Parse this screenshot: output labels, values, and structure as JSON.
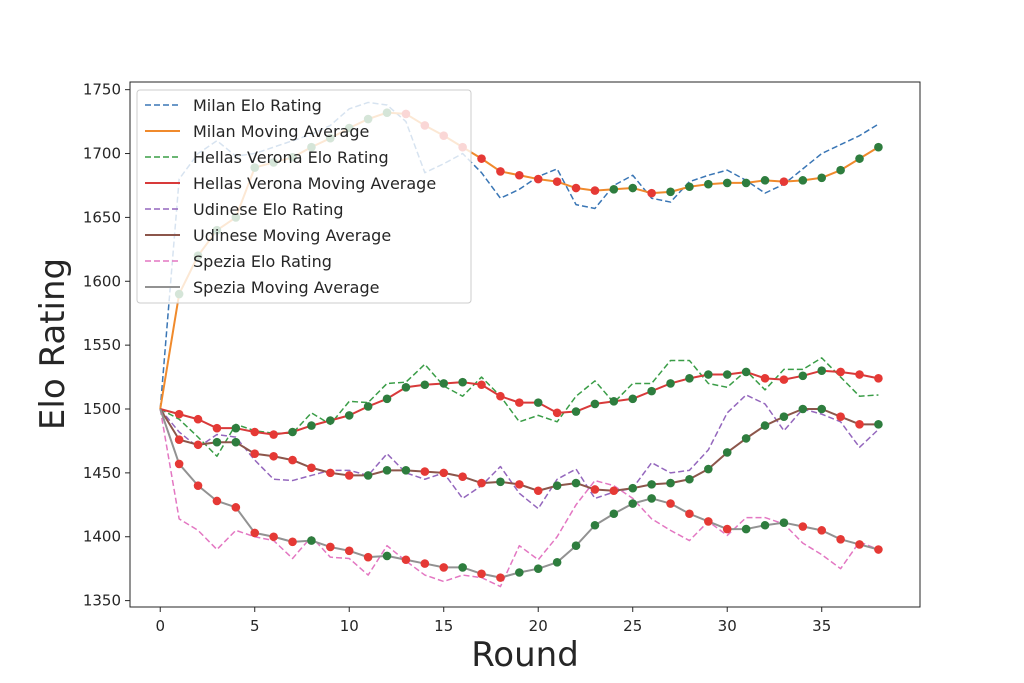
{
  "chart_data": {
    "type": "line",
    "title": "",
    "xlabel": "Round",
    "ylabel": "Elo Rating",
    "xlim": [
      -1.6,
      40.2
    ],
    "ylim": [
      1345,
      1756
    ],
    "xticks": [
      0,
      5,
      10,
      15,
      20,
      25,
      30,
      35
    ],
    "yticks": [
      1350,
      1400,
      1450,
      1500,
      1550,
      1600,
      1650,
      1700,
      1750
    ],
    "grid": false,
    "legend_position": "top-left",
    "legend_order": [
      "Milan Elo Rating",
      "Milan Moving Average",
      "Hellas Verona Elo Rating",
      "Hellas Verona Moving Average",
      "Udinese Elo Rating",
      "Udinese Moving Average",
      "Spezia Elo Rating",
      "Spezia Moving Average"
    ],
    "marker_colors": {
      "up": "#2e7d3e",
      "down": "#e53935"
    },
    "x": [
      0,
      1,
      2,
      3,
      4,
      5,
      6,
      7,
      8,
      9,
      10,
      11,
      12,
      13,
      14,
      15,
      16,
      17,
      18,
      19,
      20,
      21,
      22,
      23,
      24,
      25,
      26,
      27,
      28,
      29,
      30,
      31,
      32,
      33,
      34,
      35,
      36,
      37,
      38
    ],
    "series": [
      {
        "name": "Milan Elo Rating",
        "style": "dashed",
        "color": "#3a76b5",
        "values": [
          1500,
          1680,
          1700,
          1710,
          1698,
          1700,
          1705,
          1710,
          1715,
          1722,
          1735,
          1740,
          1738,
          1725,
          1685,
          1692,
          1700,
          1685,
          1665,
          1672,
          1682,
          1688,
          1660,
          1657,
          1675,
          1683,
          1665,
          1662,
          1678,
          1683,
          1687,
          1679,
          1669,
          1676,
          1688,
          1700,
          1707,
          1714,
          1723
        ]
      },
      {
        "name": "Milan Moving Average",
        "style": "solid",
        "color": "#f08a2c",
        "markers": true,
        "values": [
          1500,
          1590,
          1620,
          1640,
          1650,
          1689,
          1693,
          1697,
          1705,
          1712,
          1720,
          1727,
          1732,
          1731,
          1722,
          1714,
          1705,
          1696,
          1686,
          1683,
          1680,
          1678,
          1673,
          1671,
          1672,
          1673,
          1669,
          1670,
          1674,
          1676,
          1677,
          1677,
          1679,
          1678,
          1679,
          1681,
          1687,
          1696,
          1705
        ]
      },
      {
        "name": "Hellas Verona Elo Rating",
        "style": "dashed",
        "color": "#3a9d47",
        "values": [
          1500,
          1492,
          1478,
          1463,
          1488,
          1483,
          1481,
          1481,
          1497,
          1488,
          1506,
          1505,
          1520,
          1521,
          1535,
          1518,
          1510,
          1525,
          1510,
          1490,
          1495,
          1490,
          1510,
          1522,
          1505,
          1520,
          1520,
          1538,
          1538,
          1520,
          1517,
          1530,
          1515,
          1531,
          1531,
          1540,
          1525,
          1510,
          1511
        ]
      },
      {
        "name": "Hellas Verona Moving Average",
        "style": "solid",
        "color": "#d83a3a",
        "markers": true,
        "values": [
          1500,
          1496,
          1492,
          1485,
          1485,
          1482,
          1480,
          1482,
          1487,
          1491,
          1495,
          1502,
          1508,
          1517,
          1519,
          1520,
          1521,
          1519,
          1510,
          1505,
          1505,
          1497,
          1498,
          1504,
          1506,
          1508,
          1514,
          1520,
          1524,
          1527,
          1527,
          1529,
          1524,
          1523,
          1526,
          1530,
          1529,
          1527,
          1524
        ]
      },
      {
        "name": "Udinese Elo Rating",
        "style": "dashed",
        "color": "#9467bd",
        "values": [
          1500,
          1482,
          1470,
          1480,
          1478,
          1460,
          1445,
          1444,
          1448,
          1452,
          1452,
          1448,
          1465,
          1450,
          1445,
          1450,
          1430,
          1440,
          1455,
          1434,
          1422,
          1445,
          1453,
          1430,
          1435,
          1438,
          1458,
          1450,
          1452,
          1468,
          1497,
          1511,
          1504,
          1483,
          1500,
          1496,
          1490,
          1470,
          1484
        ]
      },
      {
        "name": "Udinese Moving Average",
        "style": "solid",
        "color": "#8c564b",
        "markers": true,
        "values": [
          1500,
          1476,
          1472,
          1474,
          1474,
          1465,
          1463,
          1460,
          1454,
          1450,
          1448,
          1448,
          1452,
          1452,
          1451,
          1450,
          1447,
          1442,
          1443,
          1441,
          1436,
          1440,
          1442,
          1437,
          1436,
          1438,
          1441,
          1442,
          1445,
          1453,
          1466,
          1477,
          1487,
          1494,
          1500,
          1500,
          1494,
          1488,
          1488
        ]
      },
      {
        "name": "Spezia Elo Rating",
        "style": "dashed",
        "color": "#e377c2",
        "values": [
          1500,
          1414,
          1405,
          1390,
          1405,
          1400,
          1397,
          1383,
          1400,
          1384,
          1383,
          1370,
          1393,
          1381,
          1370,
          1365,
          1370,
          1368,
          1361,
          1393,
          1382,
          1400,
          1425,
          1444,
          1440,
          1430,
          1414,
          1405,
          1397,
          1412,
          1401,
          1415,
          1415,
          1410,
          1395,
          1386,
          1375,
          1396,
          1390
        ]
      },
      {
        "name": "Spezia Moving Average",
        "style": "solid",
        "color": "#929292",
        "markers": true,
        "values": [
          1500,
          1457,
          1440,
          1428,
          1423,
          1403,
          1400,
          1396,
          1397,
          1392,
          1389,
          1384,
          1385,
          1382,
          1379,
          1376,
          1376,
          1371,
          1368,
          1372,
          1375,
          1380,
          1393,
          1409,
          1418,
          1426,
          1430,
          1426,
          1418,
          1412,
          1406,
          1406,
          1409,
          1411,
          1408,
          1405,
          1398,
          1394,
          1390
        ]
      }
    ]
  }
}
